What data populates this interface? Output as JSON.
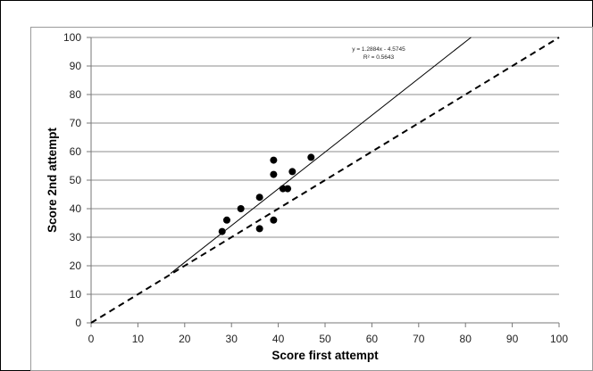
{
  "chart_data": {
    "type": "scatter",
    "title": "",
    "xlabel": "Score first attempt",
    "ylabel": "Score 2nd attempt",
    "xlim": [
      0,
      100
    ],
    "ylim": [
      0,
      100
    ],
    "x_ticks": [
      "0",
      "10",
      "20",
      "30",
      "40",
      "50",
      "60",
      "70",
      "80",
      "90",
      "100"
    ],
    "y_ticks": [
      "0",
      "10",
      "20",
      "30",
      "40",
      "50",
      "60",
      "70",
      "80",
      "90",
      "100"
    ],
    "grid": "horizontal",
    "series": [
      {
        "points": [
          {
            "x": 28,
            "y": 32
          },
          {
            "x": 29,
            "y": 36
          },
          {
            "x": 32,
            "y": 40
          },
          {
            "x": 36,
            "y": 33
          },
          {
            "x": 36,
            "y": 44
          },
          {
            "x": 39,
            "y": 57
          },
          {
            "x": 39,
            "y": 52
          },
          {
            "x": 39,
            "y": 36
          },
          {
            "x": 41,
            "y": 47
          },
          {
            "x": 42,
            "y": 47
          },
          {
            "x": 43,
            "y": 53
          },
          {
            "x": 47,
            "y": 58
          }
        ]
      }
    ],
    "trendline": {
      "slope": 1.2884,
      "intercept": -4.5745,
      "x_range": [
        17,
        81.2
      ]
    },
    "identity_line": {
      "x_range": [
        0,
        100
      ],
      "style": "dashed"
    },
    "annotations": {
      "equation": "y = 1.2884x - 4.5745",
      "r_squared": "R² = 0.5643"
    }
  }
}
